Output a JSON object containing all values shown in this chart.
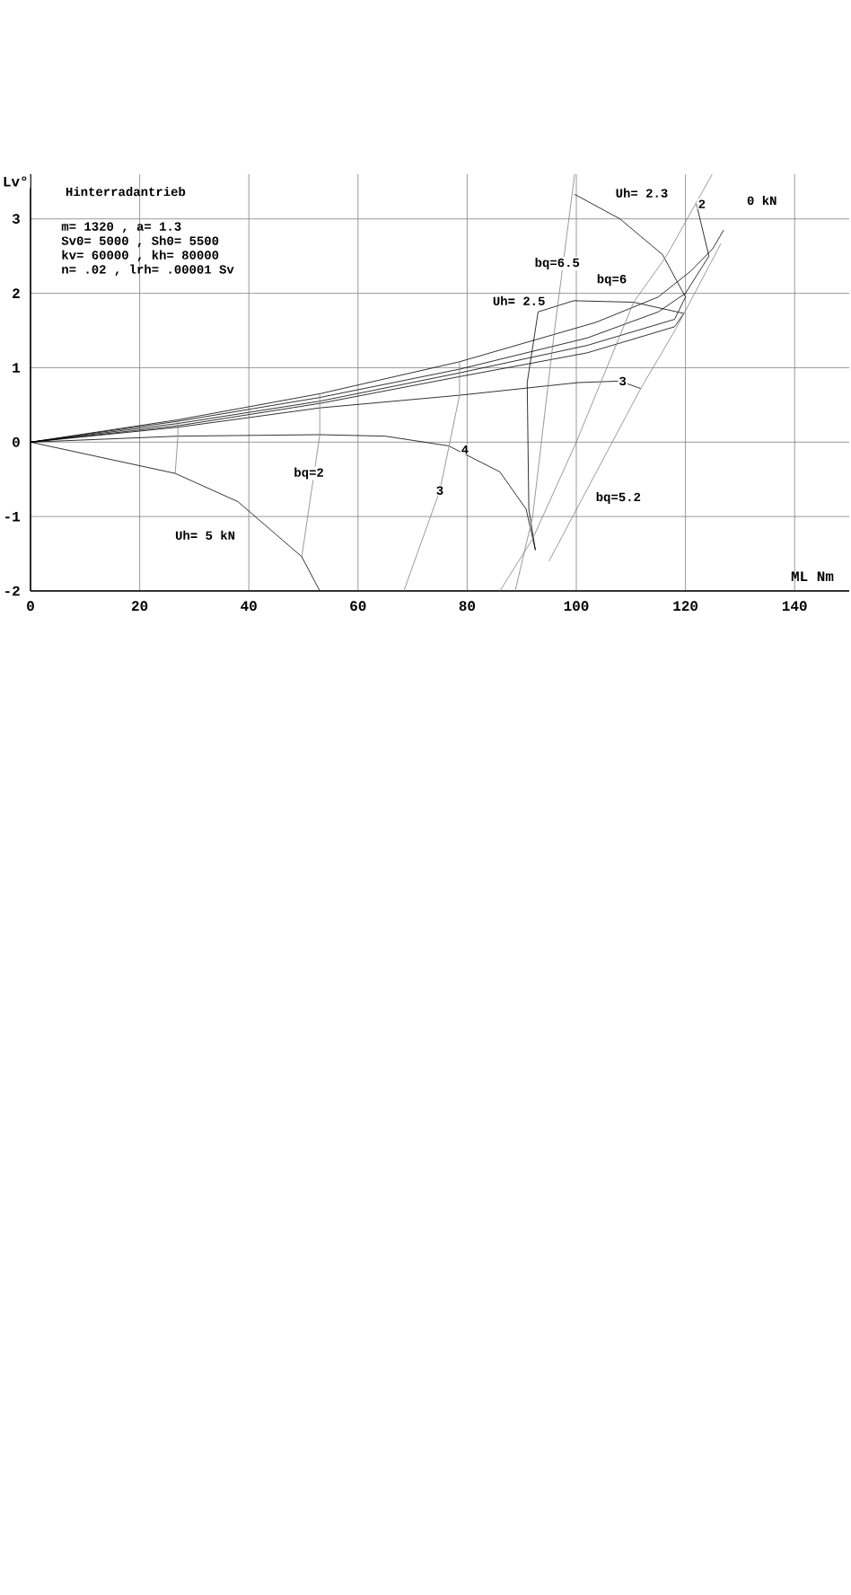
{
  "chart_data": {
    "type": "line",
    "xlabel": "ML Nm",
    "ylabel": "Lv°",
    "xlim": [
      0,
      150
    ],
    "ylim": [
      -2,
      3.6
    ],
    "xticks": [
      0,
      20,
      40,
      60,
      80,
      100,
      120,
      140
    ],
    "yticks": [
      -2,
      -1,
      0,
      1,
      2,
      3
    ],
    "grid": true,
    "line_style": "solid",
    "series": [
      {
        "color": "#000000",
        "x": [
          0,
          27,
          53,
          78.6,
          103.6,
          115,
          121,
          125,
          127
        ],
        "values": [
          0,
          0.3,
          0.65,
          1.08,
          1.61,
          1.95,
          2.3,
          2.6,
          2.85
        ]
      },
      {
        "color": "#000000",
        "x": [
          0,
          27,
          53,
          78.6,
          102,
          115,
          120,
          124.3,
          122
        ],
        "values": [
          0,
          0.28,
          0.6,
          0.98,
          1.4,
          1.75,
          2.0,
          2.5,
          3.2
        ]
      },
      {
        "color": "#000000",
        "x": [
          0,
          27,
          53,
          78.6,
          102,
          118,
          120,
          115.8,
          108,
          99.7
        ],
        "values": [
          0,
          0.25,
          0.55,
          0.93,
          1.3,
          1.65,
          1.95,
          2.52,
          3.0,
          3.33
        ]
      },
      {
        "color": "#000000",
        "x": [
          0,
          27,
          53,
          78.6,
          102,
          118,
          119.7,
          110.5,
          99.5,
          93,
          91,
          91.3,
          92.5
        ],
        "values": [
          0,
          0.22,
          0.52,
          0.88,
          1.2,
          1.55,
          1.73,
          1.88,
          1.9,
          1.75,
          0.8,
          -0.9,
          -1.45
        ]
      },
      {
        "color": "#000000",
        "x": [
          0,
          27,
          53,
          78.6,
          100.3,
          108,
          111.8
        ],
        "values": [
          0,
          0.2,
          0.46,
          0.63,
          0.8,
          0.82,
          0.72
        ]
      },
      {
        "color": "#000000",
        "x": [
          0,
          27,
          53,
          65,
          76.6,
          86,
          90.8,
          92.5
        ],
        "values": [
          0,
          0.08,
          0.1,
          0.08,
          -0.05,
          -0.4,
          -0.9,
          -1.45
        ]
      },
      {
        "color": "#000000",
        "x": [
          0,
          26.5,
          38,
          49.7,
          53
        ],
        "values": [
          0,
          -0.42,
          -0.8,
          -1.54,
          -2
        ]
      },
      {
        "color": "#808080",
        "x": [
          27,
          27,
          26.5
        ],
        "values": [
          0.3,
          0.08,
          -0.42
        ]
      },
      {
        "color": "#808080",
        "x": [
          53,
          53,
          49.7
        ],
        "values": [
          0.65,
          0.1,
          -1.54
        ]
      },
      {
        "color": "#808080",
        "x": [
          68.4,
          75,
          78.6,
          78.6
        ],
        "values": [
          -2,
          -0.65,
          0.63,
          1.08
        ]
      },
      {
        "color": "#808080",
        "x": [
          95,
          99.7,
          111.8,
          118.3,
          126.5
        ],
        "values": [
          -1.6,
          -0.95,
          0.72,
          1.53,
          2.67
        ]
      },
      {
        "color": "#808080",
        "x": [
          86,
          92,
          100,
          110.5,
          116.5,
          124.9
        ],
        "values": [
          -2,
          -1.3,
          0,
          1.88,
          2.5,
          3.6
        ]
      },
      {
        "color": "#808080",
        "x": [
          88.8,
          92,
          96,
          99.7
        ],
        "values": [
          -2,
          -1.0,
          1.5,
          3.6
        ]
      }
    ],
    "annotations": [
      "Hinterradantrieb",
      "m= 1320 , a= 1.3",
      "Sv0= 5000 , Sh0= 5500",
      "kv= 60000 , kh= 80000",
      "n= .02 , lrh= .00001  Sv",
      {
        "text": "Uh= 2.3",
        "x": 108,
        "y": 3.0
      },
      {
        "text": "2",
        "x": 123,
        "y": 2.85
      },
      {
        "text": "0 kN",
        "x": 127,
        "y": 2.85
      },
      {
        "text": "Uh= 2.5",
        "x": 99.5,
        "y": 1.9
      },
      {
        "text": "3",
        "x": 108.5,
        "y": 0.82
      },
      {
        "text": "4",
        "x": 76.6,
        "y": -0.05
      },
      {
        "text": "Uh= 5 kN",
        "x": 38,
        "y": -0.8
      },
      {
        "text": "bq=2",
        "x": 51,
        "y": -0.42
      },
      {
        "text": "3",
        "x": 75,
        "y": -0.65
      },
      {
        "text": "bq=5.2",
        "x": 99.7,
        "y": -0.95
      },
      {
        "text": "bq=6",
        "x": 110.5,
        "y": 1.88
      },
      {
        "text": "bq=6.5",
        "x": 96.5,
        "y": 2.4
      }
    ]
  }
}
